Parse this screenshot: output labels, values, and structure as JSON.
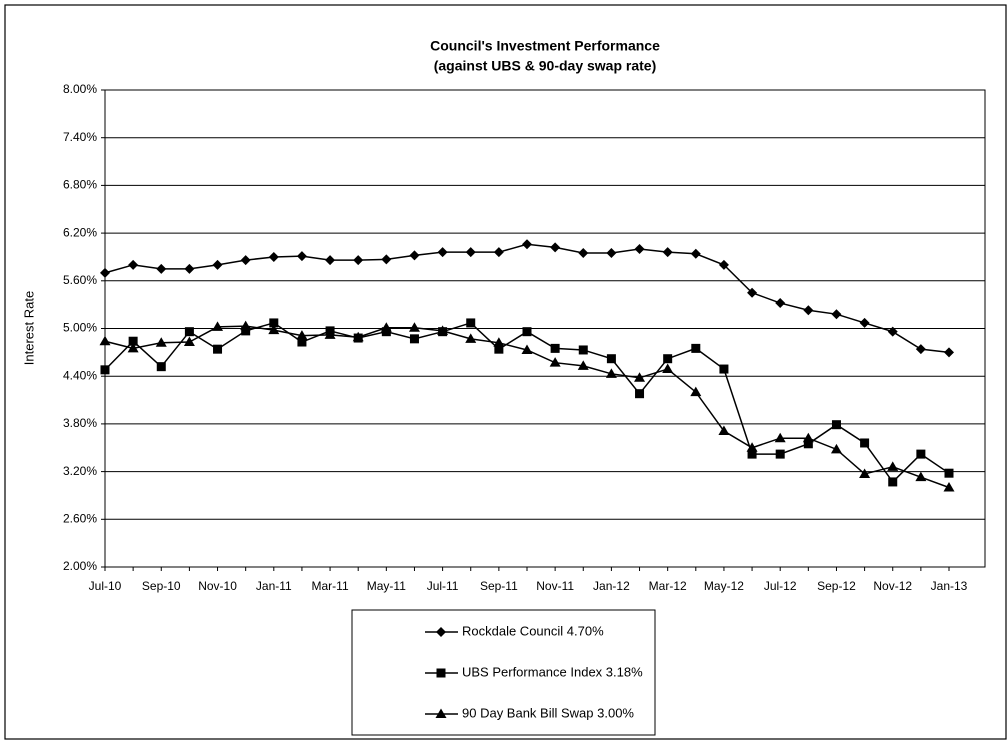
{
  "chart_data": {
    "type": "line",
    "title": "Council's Investment Performance",
    "subtitle": "(against UBS & 90-day swap rate)",
    "y_label": "Interest Rate",
    "categories": [
      "Jul-10",
      null,
      "Sep-10",
      null,
      "Nov-10",
      null,
      "Jan-11",
      null,
      "Mar-11",
      null,
      "May-11",
      null,
      "Jul-11",
      null,
      "Sep-11",
      null,
      "Nov-11",
      null,
      "Jan-12",
      null,
      "Mar-12",
      null,
      "May-12",
      null,
      "Jul-12",
      null,
      "Sep-12",
      null,
      "Nov-12",
      null,
      "Jan-13"
    ],
    "series": [
      {
        "name": "Rockdale Council 4.70%",
        "color": "#000000",
        "marker": "diamond",
        "values": [
          5.7,
          5.8,
          5.75,
          5.75,
          5.8,
          5.86,
          5.9,
          5.91,
          5.86,
          5.86,
          5.87,
          5.92,
          5.96,
          5.96,
          5.96,
          6.06,
          6.02,
          5.95,
          5.95,
          6.0,
          5.96,
          5.94,
          5.8,
          5.45,
          5.32,
          5.23,
          5.18,
          5.07,
          4.96,
          4.74,
          4.7
        ]
      },
      {
        "name": "UBS Performance Index 3.18%",
        "color": "#000000",
        "marker": "square",
        "values": [
          4.48,
          4.84,
          4.52,
          4.96,
          4.74,
          4.97,
          5.07,
          4.83,
          4.97,
          4.88,
          4.96,
          4.87,
          4.96,
          5.07,
          4.74,
          4.96,
          4.75,
          4.73,
          4.62,
          4.18,
          4.62,
          4.75,
          4.49,
          3.42,
          3.42,
          3.55,
          3.79,
          3.56,
          3.07,
          3.42,
          3.18
        ]
      },
      {
        "name": "90 Day Bank Bill Swap 3.00%",
        "color": "#000000",
        "marker": "triangle",
        "values": [
          4.84,
          4.75,
          4.82,
          4.83,
          5.02,
          5.03,
          4.98,
          4.91,
          4.92,
          4.89,
          5.01,
          5.01,
          4.97,
          4.87,
          4.82,
          4.73,
          4.57,
          4.53,
          4.43,
          4.38,
          4.49,
          4.2,
          3.71,
          3.5,
          3.62,
          3.62,
          3.48,
          3.17,
          3.26,
          3.13,
          3.0
        ]
      }
    ],
    "ylim": [
      2,
      8
    ],
    "yticks": [
      {
        "value": 2,
        "label": "2.00%"
      },
      {
        "value": 2.6,
        "label": "2.60%"
      },
      {
        "value": 3.2,
        "label": "3.20%"
      },
      {
        "value": 3.8,
        "label": "3.80%"
      },
      {
        "value": 4.4,
        "label": "4.40%"
      },
      {
        "value": 5,
        "label": "5.00%"
      },
      {
        "value": 5.6,
        "label": "5.60%"
      },
      {
        "value": 6.2,
        "label": "6.20%"
      },
      {
        "value": 6.8,
        "label": "6.80%"
      },
      {
        "value": 7.4,
        "label": "7.40%"
      },
      {
        "value": 8,
        "label": "8.00%"
      }
    ],
    "grid": true
  }
}
